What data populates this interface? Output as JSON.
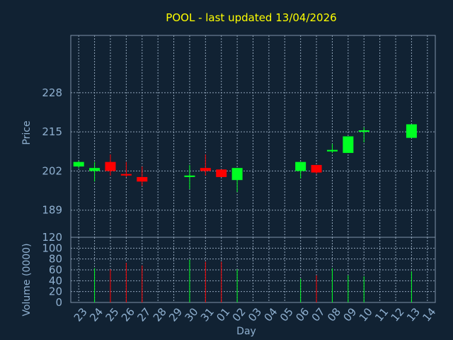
{
  "chart_data": [
    {
      "type": "candlestick",
      "title": "POOL - last updated 13/04/2026",
      "ylabel": "Price",
      "ylim": [
        180,
        247
      ],
      "yticks": [
        189,
        202,
        215,
        228
      ],
      "grid": true,
      "colors": {
        "up": "#00ff22",
        "down": "#ff0000",
        "background": "#112233",
        "title": "#ffff00",
        "axis_text": "#8fb0d0"
      },
      "candles": [
        {
          "day": "23",
          "open": 203.5,
          "close": 205.0,
          "high": 205.3,
          "low": 203.0
        },
        {
          "day": "24",
          "open": 202.0,
          "close": 203.0,
          "high": 205.0,
          "low": 198.5
        },
        {
          "day": "25",
          "open": 205.0,
          "close": 202.0,
          "high": 207.5,
          "low": 200.5
        },
        {
          "day": "26",
          "open": 201.0,
          "close": 200.5,
          "high": 205.0,
          "low": 200.0
        },
        {
          "day": "27",
          "open": 200.0,
          "close": 198.5,
          "high": 203.5,
          "low": 197.0
        },
        {
          "day": "30",
          "open": 200.0,
          "close": 200.5,
          "high": 204.0,
          "low": 196.0
        },
        {
          "day": "31",
          "open": 203.0,
          "close": 202.0,
          "high": 207.5,
          "low": 200.5
        },
        {
          "day": "01",
          "open": 202.5,
          "close": 200.0,
          "high": 202.5,
          "low": 200.0
        },
        {
          "day": "02",
          "open": 199.0,
          "close": 203.0,
          "high": 203.0,
          "low": 195.0
        },
        {
          "day": "06",
          "open": 202.0,
          "close": 205.0,
          "high": 205.0,
          "low": 199.5
        },
        {
          "day": "07",
          "open": 204.0,
          "close": 201.5,
          "high": 204.0,
          "low": 201.0
        },
        {
          "day": "08",
          "open": 208.5,
          "close": 209.0,
          "high": 211.0,
          "low": 208.0
        },
        {
          "day": "09",
          "open": 208.0,
          "close": 213.5,
          "high": 213.5,
          "low": 208.0
        },
        {
          "day": "10",
          "open": 215.0,
          "close": 215.5,
          "high": 216.5,
          "low": 211.5
        },
        {
          "day": "13",
          "open": 213.0,
          "close": 217.5,
          "high": 217.5,
          "low": 213.0
        }
      ]
    },
    {
      "type": "bar",
      "ylabel": "Volume (0000)",
      "xlabel": "Day",
      "ylim": [
        0,
        120
      ],
      "yticks": [
        0,
        20,
        40,
        60,
        80,
        100,
        120
      ],
      "grid": true,
      "categories": [
        "23",
        "24",
        "25",
        "26",
        "27",
        "28",
        "29",
        "30",
        "31",
        "01",
        "02",
        "03",
        "04",
        "05",
        "06",
        "07",
        "08",
        "09",
        "10",
        "11",
        "12",
        "13",
        "14"
      ],
      "bars": [
        {
          "day": "24",
          "value": 63,
          "direction": "up"
        },
        {
          "day": "25",
          "value": 61,
          "direction": "down"
        },
        {
          "day": "26",
          "value": 73,
          "direction": "down"
        },
        {
          "day": "27",
          "value": 68,
          "direction": "down"
        },
        {
          "day": "30",
          "value": 79,
          "direction": "up"
        },
        {
          "day": "31",
          "value": 75,
          "direction": "down"
        },
        {
          "day": "01",
          "value": 75,
          "direction": "down"
        },
        {
          "day": "02",
          "value": 61,
          "direction": "up"
        },
        {
          "day": "06",
          "value": 44,
          "direction": "up"
        },
        {
          "day": "07",
          "value": 50,
          "direction": "down"
        },
        {
          "day": "08",
          "value": 63,
          "direction": "up"
        },
        {
          "day": "09",
          "value": 50,
          "direction": "up"
        },
        {
          "day": "10",
          "value": 48,
          "direction": "up"
        },
        {
          "day": "13",
          "value": 57,
          "direction": "up"
        }
      ]
    }
  ]
}
